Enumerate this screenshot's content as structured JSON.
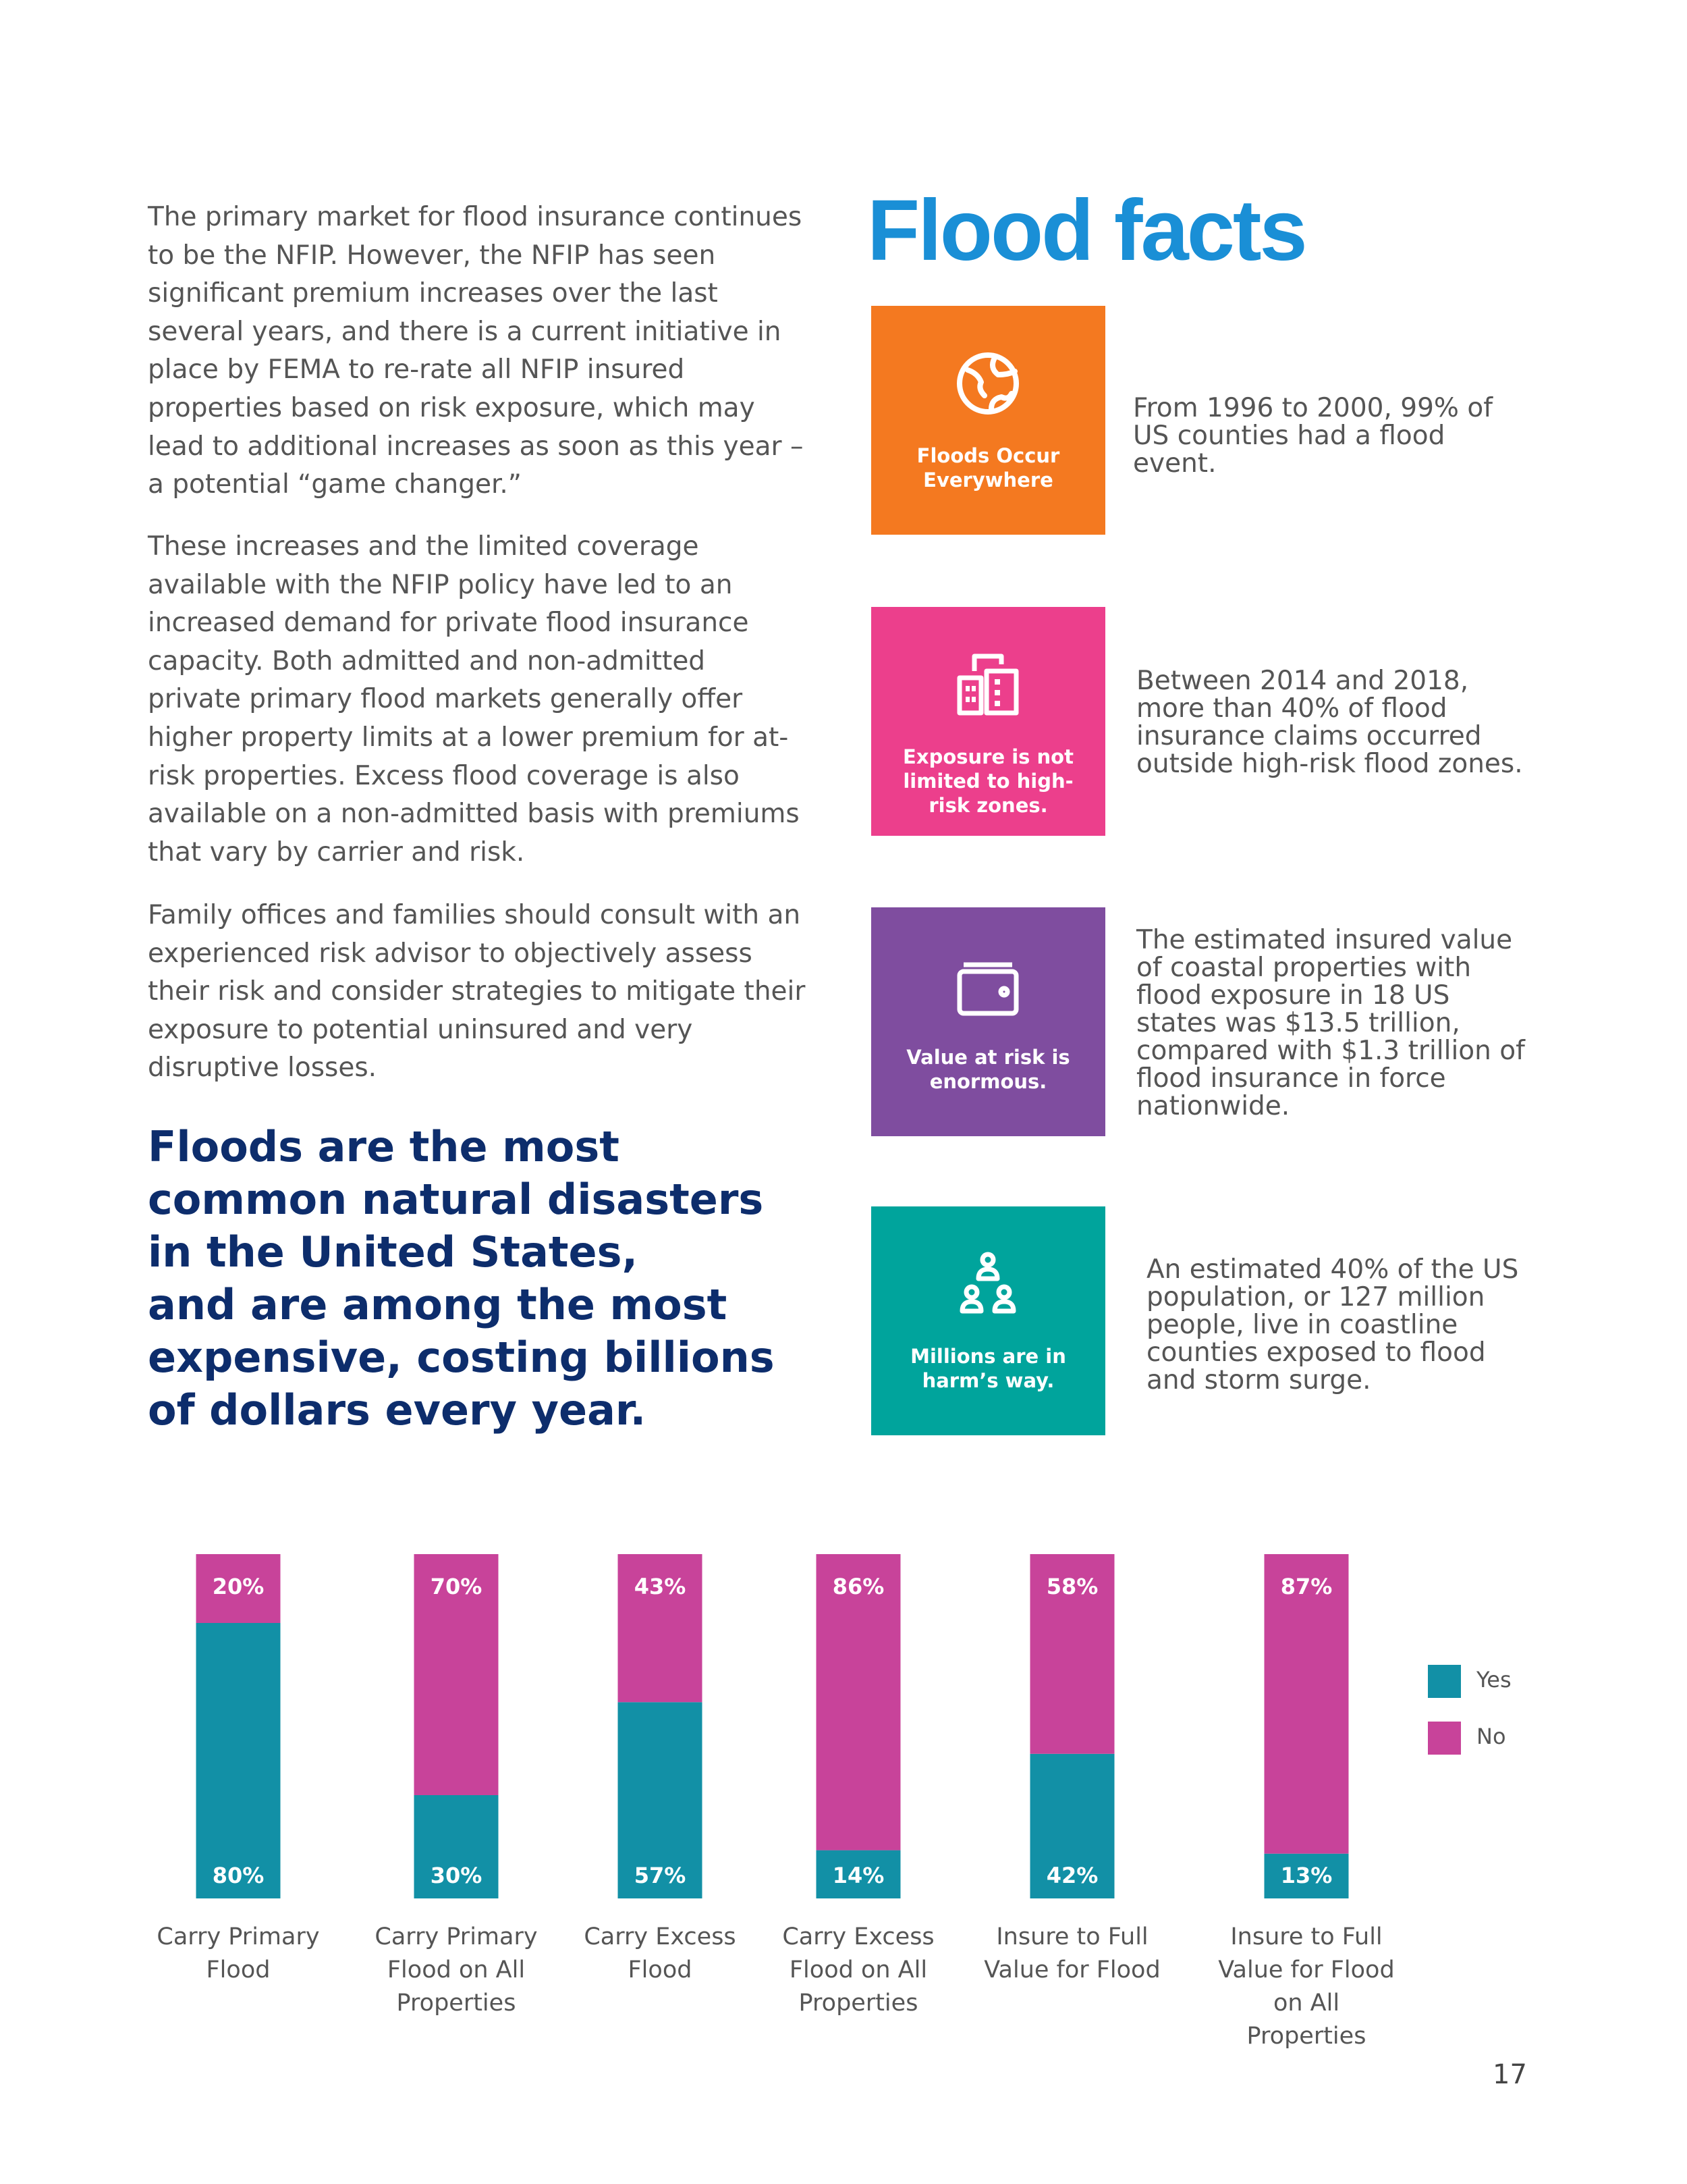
{
  "body": {
    "paragraphs": [
      "The primary market for flood insurance continues to be the NFIP. However, the NFIP has seen significant premium increases over the last several years, and there is a current initiative in place by FEMA to re-rate all NFIP insured properties based on risk exposure, which may lead to additional increases as soon as this year – a potential “game changer.”",
      "These increases and the limited coverage available with the NFIP policy have led to an increased demand for private flood insurance capacity. Both admitted and non-admitted private primary flood markets generally offer higher property limits at a lower premium for at-risk properties. Excess flood coverage is also available on a non-admitted basis with premiums that vary by carrier and risk.",
      "Family offices and families should consult with an experienced risk advisor to objectively assess their risk and consider strategies to mitigate their exposure to potential uninsured and very disruptive losses."
    ],
    "headline": [
      "Floods are the most",
      "common natural disasters",
      "in the United States,",
      "and are among the most",
      "expensive, costing billions",
      "of dollars every year."
    ]
  },
  "flood_facts": {
    "title": "Flood facts",
    "facts": [
      {
        "label": "Floods Occur Everywhere",
        "text": "From 1996 to 2000, 99% of US counties had a flood event."
      },
      {
        "label": "Exposure is not limited to high-risk zones.",
        "text": "Between 2014 and 2018, more than 40% of flood insurance claims occurred outside high-risk flood zones."
      },
      {
        "label": "Value at risk is enormous.",
        "text": "The estimated insured value of coastal properties with flood exposure in 18 US states was $13.5 trillion, compared with $1.3 trillion of flood insurance in force nationwide."
      },
      {
        "label": "Millions are in harm’s way.",
        "text": "An estimated 40% of the US population, or 127 million people, live in coastline counties exposed to flood and storm surge."
      }
    ]
  },
  "chart_data": {
    "type": "stacked_bar",
    "categories": [
      "Carry Primary Flood",
      "Carry Primary Flood on All Properties",
      "Carry Excess Flood",
      "Carry Excess Flood on All Properties",
      "Insure to Full Value for Flood",
      "Insure to Full Value for Flood on All Properties"
    ],
    "series": [
      {
        "name": "Yes",
        "color": "#1290a6",
        "values": [
          80,
          30,
          57,
          14,
          42,
          13
        ],
        "value_labels": [
          "80%",
          "30%",
          "57%",
          "14%",
          "42%",
          "13%"
        ]
      },
      {
        "name": "No",
        "color": "#c8439a",
        "values": [
          20,
          70,
          43,
          86,
          58,
          87
        ],
        "value_labels": [
          "20%",
          "70%",
          "43%",
          "86%",
          "58%",
          "87%"
        ]
      }
    ]
  },
  "page_number": "17"
}
